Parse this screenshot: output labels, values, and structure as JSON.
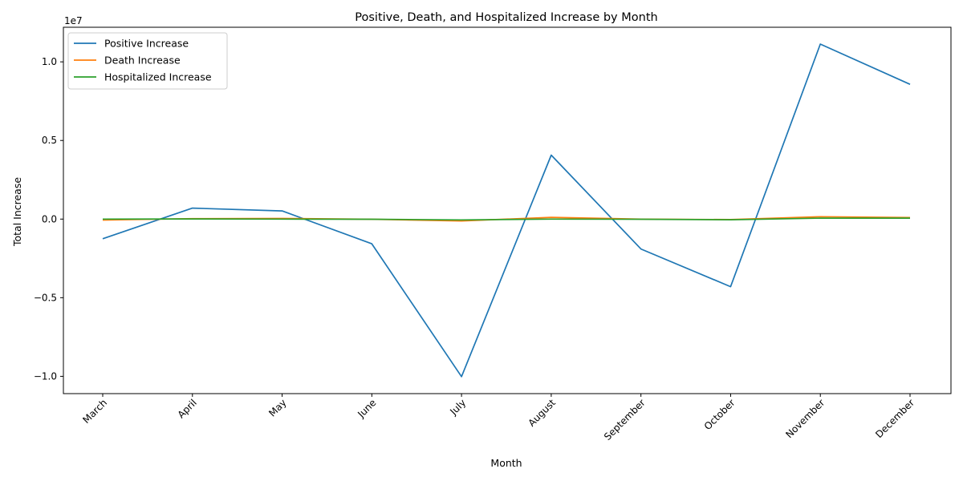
{
  "chart_data": {
    "type": "line",
    "title": "Positive, Death, and Hospitalized Increase by Month",
    "xlabel": "Month",
    "ylabel": "Total Increase",
    "y_offset_label": "1e7",
    "categories": [
      "March",
      "April",
      "May",
      "June",
      "July",
      "August",
      "September",
      "October",
      "November",
      "December"
    ],
    "ylim": [
      -11100000,
      12200000
    ],
    "yticks": [
      -10000000,
      -5000000,
      0,
      5000000,
      10000000
    ],
    "ytick_labels": [
      "−1.0",
      "−0.5",
      "0.0",
      "0.5",
      "1.0"
    ],
    "grid": false,
    "legend_position": "upper-left",
    "series": [
      {
        "name": "Positive Increase",
        "color": "#1f77b4",
        "values": [
          -1250000,
          700000,
          520000,
          -1570000,
          -10020000,
          4070000,
          -1900000,
          -4300000,
          11130000,
          8570000
        ]
      },
      {
        "name": "Death Increase",
        "color": "#ff7f0e",
        "values": [
          -60000,
          30000,
          40000,
          -10000,
          -120000,
          110000,
          0,
          -30000,
          150000,
          100000
        ]
      },
      {
        "name": "Hospitalized Increase",
        "color": "#2ca02c",
        "values": [
          0,
          10000,
          0,
          -10000,
          -50000,
          0,
          -10000,
          -40000,
          60000,
          60000
        ]
      }
    ]
  }
}
